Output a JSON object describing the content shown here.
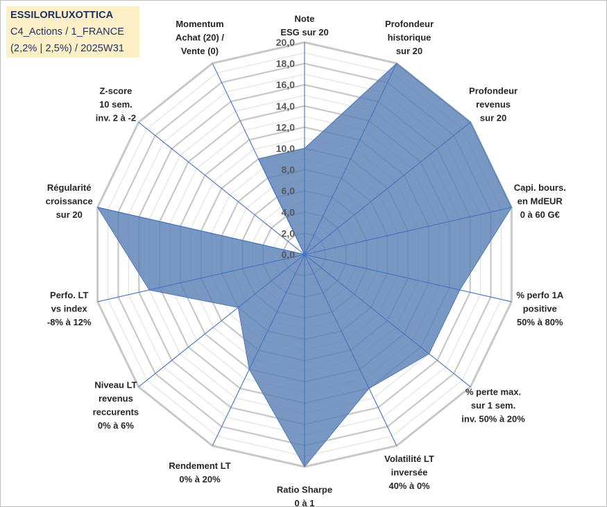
{
  "title_box": {
    "line1": "ESSILORLUXOTTICA",
    "line2": "C4_Actions / 1_FRANCE",
    "line3": "(2,2% | 2,5%) / 2025W31",
    "bg_color": "#fdf0c6",
    "text_color": "#1f2f5f"
  },
  "chart_data": {
    "type": "radar",
    "r_range": [
      0,
      20
    ],
    "tick_labels": [
      "0,0",
      "2,0",
      "4,0",
      "6,0",
      "8,0",
      "10,0",
      "12,0",
      "14,0",
      "16,0",
      "18,0",
      "20,0"
    ],
    "axes": [
      {
        "label": [
          "Note",
          "ESG sur 20"
        ],
        "value": 10
      },
      {
        "label": [
          "Profondeur",
          "historique",
          "sur 20"
        ],
        "value": 20
      },
      {
        "label": [
          "Profondeur",
          "revenus",
          "sur 20"
        ],
        "value": 20
      },
      {
        "label": [
          "Capi. bours.",
          "en MdEUR",
          "0 à 60 G€"
        ],
        "value": 20
      },
      {
        "label": [
          "% perfo 1A",
          "positive",
          "50% à 80%"
        ],
        "value": 15
      },
      {
        "label": [
          "% perte max.",
          "sur 1 sem.",
          "inv. 50% à 20%"
        ],
        "value": 15
      },
      {
        "label": [
          "Volatilité LT",
          "inversée",
          "40% à 0%"
        ],
        "value": 14
      },
      {
        "label": [
          "Ratio Sharpe",
          "0 à 1"
        ],
        "value": 20
      },
      {
        "label": [
          "Rendement LT",
          "0% à 20%"
        ],
        "value": 12
      },
      {
        "label": [
          "Niveau LT",
          "revenus",
          "reccurents",
          "0% à 6%"
        ],
        "value": 8
      },
      {
        "label": [
          "Perfo. LT",
          "vs index",
          "-8% à 12%"
        ],
        "value": 15
      },
      {
        "label": [
          "Régularité",
          "croissance",
          "sur 20"
        ],
        "value": 20
      },
      {
        "label": [
          "Z-score",
          "10 sem.",
          "inv. 2 à -2"
        ],
        "value": 0
      },
      {
        "label": [
          "Momentum",
          "Achat (20) /",
          "Vente (0)"
        ],
        "value": 10
      }
    ],
    "colors": {
      "fill": "#5a81b6",
      "fill_opacity": 0.82,
      "spoke": "#4472c4",
      "grid_major": "#c8c8c8",
      "grid_minor": "#e3e3e3"
    },
    "grid": true
  }
}
